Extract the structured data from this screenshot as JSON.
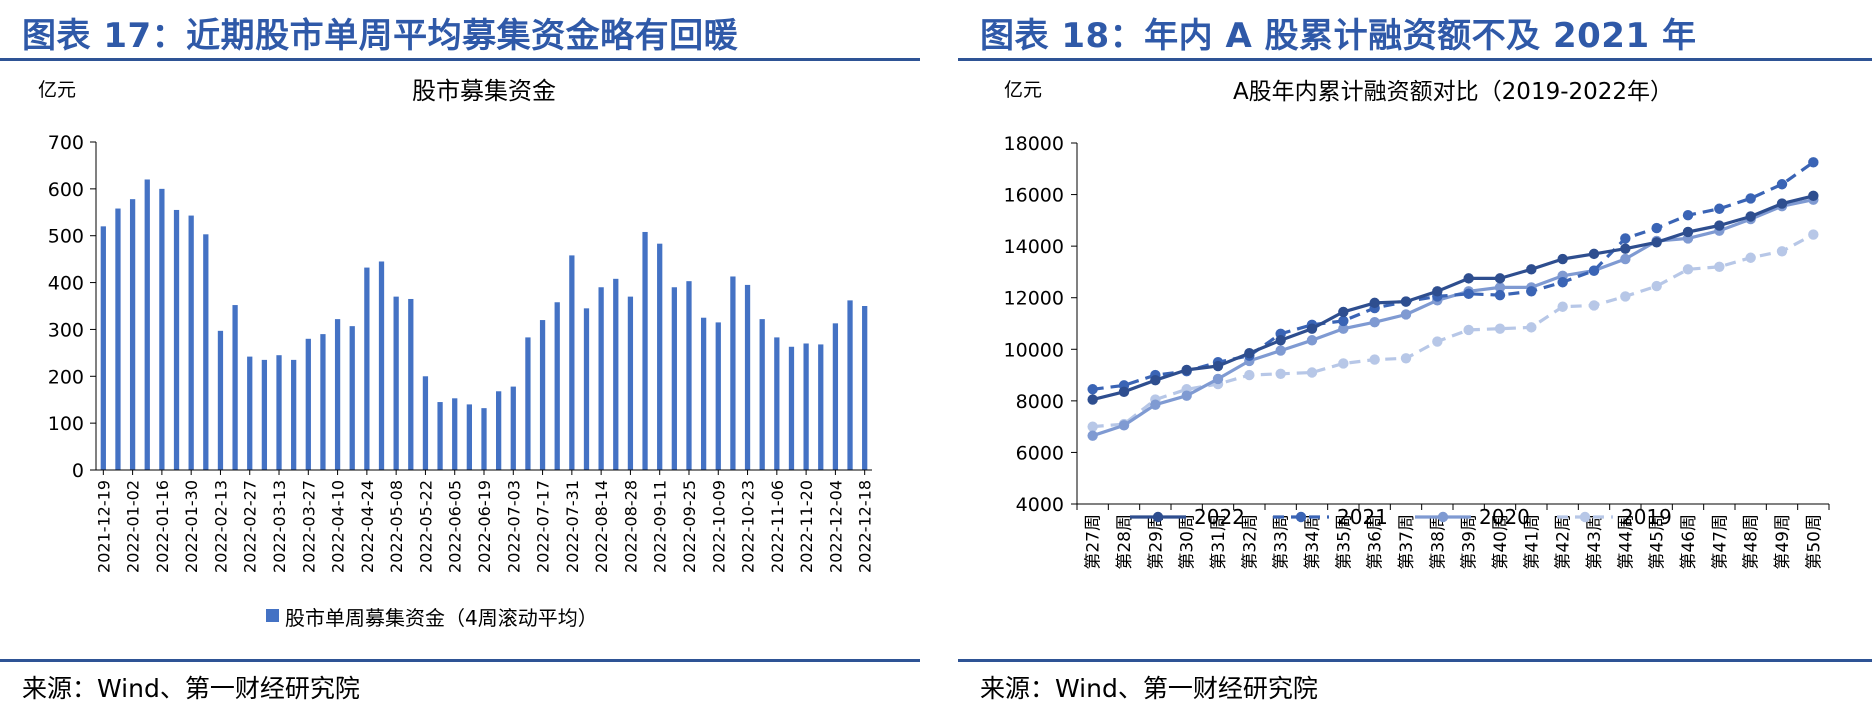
{
  "colors": {
    "heading": "#2f59a8",
    "rule": "#2e5395",
    "bar": "#4472c4",
    "s2022": "#2e4e8f",
    "s2021": "#3a64b5",
    "s2020": "#7f9ad2",
    "s2019": "#b7c7e7"
  },
  "left": {
    "figure_title": "图表 17：近期股市单周平均募集资金略有回暖",
    "source": "来源：Wind、第一财经研究院"
  },
  "right": {
    "figure_title": "图表 18：年内 A 股累计融资额不及 2021 年",
    "source": "来源：Wind、第一财经研究院"
  },
  "chart_data": [
    {
      "type": "bar",
      "title": "股市募集资金",
      "unit_label": "亿元",
      "legend": "股市单周募集资金（4周滚动平均）",
      "ylim": [
        0,
        700
      ],
      "yticks": [
        0,
        100,
        200,
        300,
        400,
        500,
        600,
        700
      ],
      "xtick_labels": [
        "2021-12-19",
        "2022-01-02",
        "2022-01-16",
        "2022-01-30",
        "2022-02-13",
        "2022-02-27",
        "2022-03-13",
        "2022-03-27",
        "2022-04-10",
        "2022-04-24",
        "2022-05-08",
        "2022-05-22",
        "2022-06-05",
        "2022-06-19",
        "2022-07-03",
        "2022-07-17",
        "2022-07-31",
        "2022-08-14",
        "2022-08-28",
        "2022-09-11",
        "2022-09-25",
        "2022-10-09",
        "2022-10-23",
        "2022-11-06",
        "2022-11-20",
        "2022-12-04",
        "2022-12-18"
      ],
      "values": [
        520,
        558,
        578,
        620,
        600,
        555,
        543,
        503,
        297,
        352,
        242,
        235,
        245,
        235,
        280,
        290,
        322,
        307,
        432,
        445,
        370,
        365,
        200,
        145,
        153,
        140,
        132,
        168,
        178,
        283,
        320,
        358,
        458,
        345,
        390,
        408,
        370,
        508,
        483,
        390,
        403,
        325,
        315,
        413,
        395,
        322,
        283,
        263,
        270,
        268,
        313,
        362,
        350
      ]
    },
    {
      "type": "line",
      "title": "A股年内累计融资额对比（2019-2022年）",
      "unit_label": "亿元",
      "ylim": [
        4000,
        18000
      ],
      "yticks": [
        4000,
        6000,
        8000,
        10000,
        12000,
        14000,
        16000,
        18000
      ],
      "categories": [
        "第27周",
        "第28周",
        "第29周",
        "第30周",
        "第31周",
        "第32周",
        "第33周",
        "第34周",
        "第35周",
        "第36周",
        "第37周",
        "第38周",
        "第39周",
        "第40周",
        "第41周",
        "第42周",
        "第43周",
        "第44周",
        "第45周",
        "第46周",
        "第47周",
        "第48周",
        "第49周",
        "第50周"
      ],
      "series": [
        {
          "name": "2022",
          "style": "solid",
          "values": [
            8050,
            8350,
            8800,
            9200,
            9350,
            9850,
            10350,
            10800,
            11450,
            11800,
            11850,
            12250,
            12750,
            12750,
            13100,
            13500,
            13700,
            13900,
            14150,
            14550,
            14800,
            15150,
            15650,
            15950
          ]
        },
        {
          "name": "2021",
          "style": "dash",
          "values": [
            8450,
            8600,
            9000,
            9150,
            9500,
            9750,
            10600,
            10950,
            11100,
            11600,
            11850,
            12050,
            12150,
            12100,
            12250,
            12600,
            13050,
            14300,
            14700,
            15200,
            15450,
            15850,
            16400,
            17250
          ]
        },
        {
          "name": "2020",
          "style": "solid",
          "values": [
            6650,
            7050,
            7850,
            8200,
            8850,
            9550,
            9950,
            10350,
            10800,
            11050,
            11350,
            11900,
            12250,
            12400,
            12400,
            12850,
            13050,
            13500,
            14200,
            14300,
            14600,
            15050,
            15550,
            15800
          ]
        },
        {
          "name": "2019",
          "style": "dash",
          "values": [
            7000,
            7100,
            8050,
            8450,
            8650,
            9000,
            9050,
            9100,
            9450,
            9600,
            9650,
            10300,
            10750,
            10800,
            10850,
            11650,
            11700,
            12050,
            12450,
            13100,
            13200,
            13550,
            13800,
            14450
          ]
        }
      ]
    }
  ]
}
